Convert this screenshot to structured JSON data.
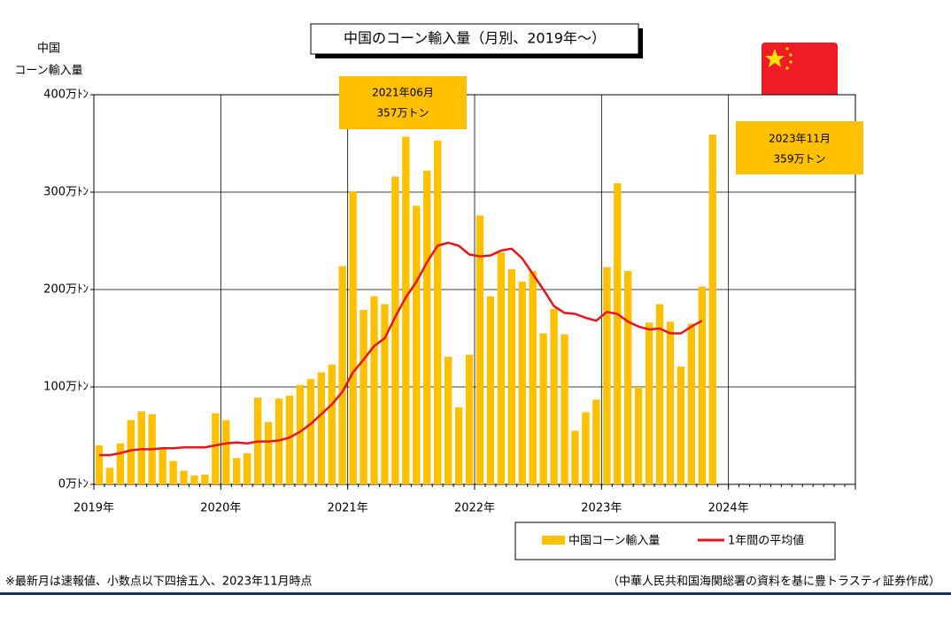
{
  "chart_data": {
    "type": "bar+line",
    "title": "中国のコーン輸入量（月別、2019年～）",
    "y_label": [
      "中国",
      "コーン輸入量"
    ],
    "categories": [
      null,
      null,
      null,
      null,
      null,
      null,
      null,
      null,
      null,
      null,
      null,
      null,
      null,
      null,
      null,
      null,
      null,
      null,
      null,
      null,
      null,
      null,
      null,
      null,
      null,
      null,
      null,
      null,
      null,
      null,
      null,
      null,
      null,
      null,
      null,
      null,
      null,
      null,
      null,
      null,
      null,
      null,
      null,
      null,
      null,
      null,
      null,
      null,
      null,
      null,
      null,
      null,
      null,
      null,
      null,
      null,
      null,
      null,
      null
    ],
    "xlim": [
      0,
      72
    ],
    "xticks": [
      {
        "value": 0,
        "label": "2019年"
      },
      {
        "value": 12,
        "label": "2020年"
      },
      {
        "value": 24,
        "label": "2021年"
      },
      {
        "value": 36,
        "label": "2022年"
      },
      {
        "value": 48,
        "label": "2023年"
      },
      {
        "value": 60,
        "label": "2024年"
      },
      {
        "value": 72,
        "label": ""
      }
    ],
    "ylim": [
      0,
      400
    ],
    "yticks": [
      {
        "value": 0,
        "label": "0万ﾄﾝ"
      },
      {
        "value": 100,
        "label": "100万ﾄﾝ"
      },
      {
        "value": 200,
        "label": "200万ﾄﾝ"
      },
      {
        "value": 300,
        "label": "300万ﾄﾝ"
      },
      {
        "value": 400,
        "label": "400万ﾄﾝ"
      }
    ],
    "grid": true,
    "series": [
      {
        "name": "中国コーン輸入量",
        "type": "bar",
        "color": "#ffc000",
        "values": [
          40,
          17,
          42,
          66,
          75,
          72,
          38,
          24,
          14,
          9,
          10,
          73,
          66,
          27,
          32,
          89,
          64,
          88,
          91,
          102,
          108,
          115,
          123,
          224,
          301,
          179,
          193,
          185,
          316,
          357,
          286,
          322,
          353,
          131,
          79,
          133,
          276,
          193,
          238,
          221,
          208,
          219,
          155,
          180,
          154,
          55,
          74,
          87,
          223,
          309,
          219,
          100,
          166,
          185,
          167,
          121,
          165,
          203,
          359
        ]
      },
      {
        "name": "1年間の平均値",
        "type": "line",
        "color": "#e8141c",
        "values": [
          30,
          30,
          32,
          35,
          36,
          36,
          37,
          37,
          38,
          38,
          38,
          40,
          42,
          43,
          42,
          44,
          44,
          45,
          48,
          54,
          62,
          72,
          82,
          95,
          115,
          128,
          142,
          150,
          172,
          192,
          208,
          228,
          245,
          248,
          245,
          236,
          234,
          235,
          240,
          242,
          232,
          216,
          200,
          183,
          176,
          175,
          171,
          168,
          177,
          175,
          167,
          162,
          159,
          160,
          155,
          155,
          162,
          168,
          null
        ]
      }
    ],
    "annotations": [
      {
        "lines": [
          "2021年06月",
          "357万トン"
        ]
      },
      {
        "lines": [
          "2023年11月",
          "359万トン"
        ]
      }
    ],
    "footnote": "※最新月は速報値、小数点以下四捨五入、2023年11月時点",
    "source": "（中華人民共和国海関総署の資料を基に豊トラスティ証券作成）"
  }
}
